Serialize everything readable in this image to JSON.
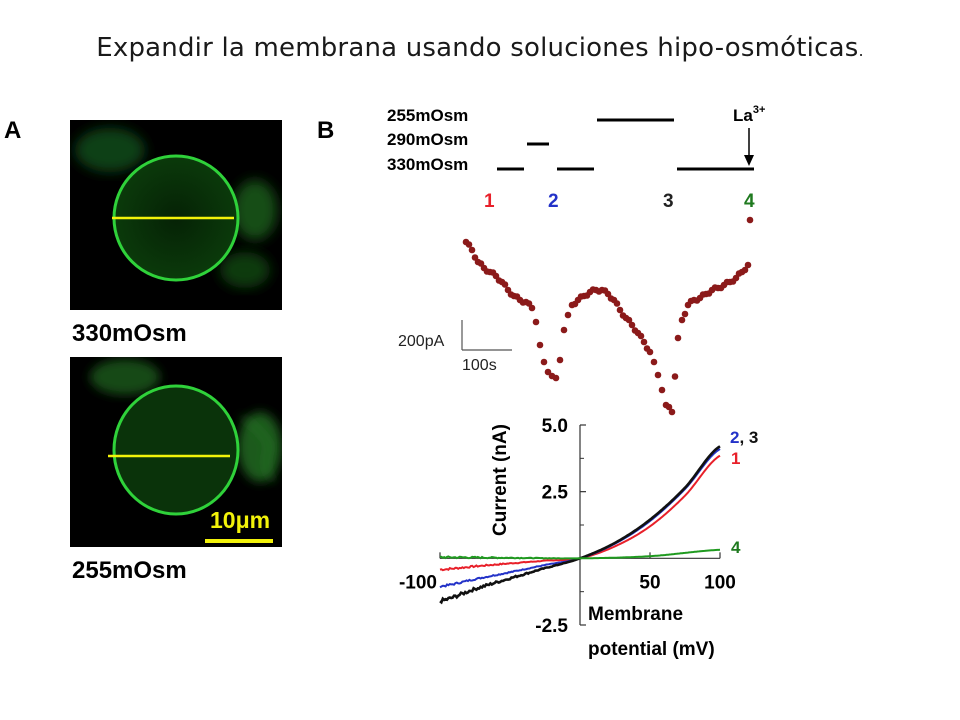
{
  "slide": {
    "title": "Expandir la membrana usando soluciones hipo-osmóticas",
    "title_dot": "."
  },
  "panel_a": {
    "letter": "A",
    "top_label": "330mOsm",
    "bottom_label": "255mOsm",
    "scale_bar_label": "10μm",
    "membrane_color": "#2fd23a",
    "diameter_line_color": "#f2f20a"
  },
  "panel_b": {
    "letter": "B",
    "protocol": {
      "labels": [
        "255mOsm",
        "290mOsm",
        "330mOsm"
      ],
      "la_label": "La",
      "la_superscript": "3+",
      "segments": [
        {
          "level": "330mOsm",
          "from": 0,
          "to": 30
        },
        {
          "level": "290mOsm",
          "from": 30,
          "to": 55
        },
        {
          "level": "330mOsm",
          "from": 60,
          "to": 100
        },
        {
          "level": "255mOsm",
          "from": 100,
          "to": 180
        },
        {
          "level": "330mOsm",
          "from": 180,
          "to": 260
        }
      ]
    },
    "markers": [
      {
        "label": "1",
        "color": "#e8202a"
      },
      {
        "label": "2",
        "color": "#2332c8"
      },
      {
        "label": "3",
        "color": "#222222"
      },
      {
        "label": "4",
        "color": "#1f7a1f"
      }
    ],
    "time_course": {
      "scale_current": "200pA",
      "scale_time": "100s",
      "dot_color": "#8b1a1a"
    }
  },
  "chart_data": {
    "type": "line",
    "title": "",
    "xlabel": "Membrane potential (mV)",
    "xlabel_lines": [
      "Membrane",
      "potential (mV)"
    ],
    "ylabel": "Current (nA)",
    "xlim": [
      -100,
      100
    ],
    "ylim": [
      -2.5,
      5.0
    ],
    "x_ticks": [
      -100,
      50,
      100
    ],
    "x_tick_labels": [
      "-100",
      "50",
      "100"
    ],
    "y_ticks": [
      -2.5,
      2.5,
      5.0
    ],
    "y_tick_labels": [
      "-2.5",
      "2.5",
      "5.0"
    ],
    "grid": false,
    "series": [
      {
        "name": "1",
        "color": "#e8202a",
        "x": [
          -100,
          -75,
          -50,
          -25,
          0,
          25,
          50,
          75,
          100
        ],
        "y": [
          -0.42,
          -0.3,
          -0.19,
          -0.09,
          0.0,
          0.45,
          1.2,
          2.35,
          3.85
        ]
      },
      {
        "name": "2",
        "color": "#2332c8",
        "x": [
          -100,
          -75,
          -50,
          -25,
          0,
          25,
          50,
          75,
          100
        ],
        "y": [
          -1.05,
          -0.78,
          -0.52,
          -0.25,
          0.0,
          0.55,
          1.4,
          2.6,
          4.1
        ]
      },
      {
        "name": "3",
        "color": "#111111",
        "x": [
          -100,
          -75,
          -50,
          -25,
          0,
          25,
          50,
          75,
          100
        ],
        "y": [
          -1.6,
          -1.15,
          -0.75,
          -0.37,
          0.0,
          0.58,
          1.45,
          2.65,
          4.2
        ]
      },
      {
        "name": "4",
        "color": "#1f9a1f",
        "x": [
          -100,
          -50,
          0,
          50,
          100
        ],
        "y": [
          0.04,
          0.02,
          0.0,
          0.08,
          0.32
        ]
      }
    ],
    "series_labels": [
      {
        "text": "2",
        "color": "#2332c8"
      },
      {
        "text": ", 3",
        "color": "#111111"
      },
      {
        "text": "1",
        "color": "#e8202a"
      },
      {
        "text": "4",
        "color": "#1f7a1f"
      }
    ]
  }
}
